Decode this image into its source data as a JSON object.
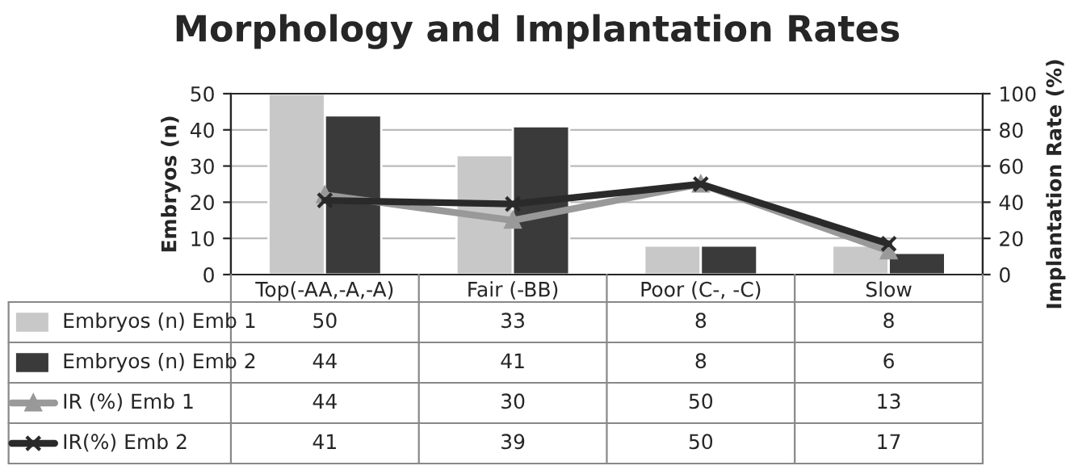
{
  "chart_data": {
    "type": "bar",
    "title": "Morphology and Implantation Rates",
    "categories": [
      "Top(-AA,-A,-A)",
      "Fair (-BB)",
      "Poor (C-, -C)",
      "Slow"
    ],
    "series": [
      {
        "name": "Embryos (n) Emb 1",
        "color": "#c8c8c8",
        "values": [
          50,
          33,
          8,
          8
        ]
      },
      {
        "name": "Embryos (n) Emb 2",
        "color": "#3a3a3a",
        "values": [
          44,
          41,
          8,
          6
        ]
      },
      {
        "name": "IR (%) Emb 1",
        "type": "line",
        "axis": "y2",
        "marker": "triangle",
        "color": "#999999",
        "values": [
          44,
          30,
          50,
          13
        ]
      },
      {
        "name": "IR(%) Emb 2",
        "type": "line",
        "axis": "y2",
        "marker": "cross",
        "color": "#2a2a2a",
        "values": [
          41,
          39,
          50,
          17
        ]
      }
    ],
    "ylabel": "Embryos (n)",
    "y2label": "Implantation Rate (%)",
    "ylim": [
      0,
      50
    ],
    "yticks": [
      0,
      10,
      20,
      30,
      40,
      50
    ],
    "y2lim": [
      0,
      100
    ],
    "y2ticks": [
      0,
      20,
      40,
      60,
      80,
      100
    ],
    "grid": "y",
    "legend": "bottom",
    "data_labels": true
  }
}
